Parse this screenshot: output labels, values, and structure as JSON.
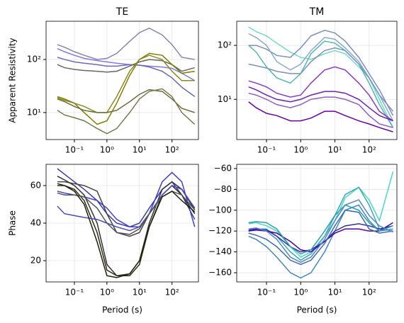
{
  "chart_data": [
    {
      "type": "line",
      "title": "TE",
      "ylabel": "Apparent Resistivity",
      "xscale": "log",
      "yscale": "log",
      "grid": true,
      "x": [
        0.03,
        0.05,
        0.1,
        0.2,
        0.5,
        1,
        2,
        5,
        10,
        20,
        50,
        100,
        200,
        500
      ],
      "xlim": [
        0.0135,
        650
      ],
      "ylim": [
        3.1,
        525
      ],
      "xticks": [
        {
          "value": 0.1,
          "label": "10⁻¹"
        },
        {
          "value": 1,
          "label": "10⁰"
        },
        {
          "value": 10,
          "label": "10¹"
        },
        {
          "value": 100,
          "label": "10²"
        }
      ],
      "yticks": [
        {
          "value": 10,
          "label": "10¹"
        },
        {
          "value": 100,
          "label": "10²"
        }
      ],
      "series": [
        {
          "color": "#8585b0",
          "values": [
            190,
            170,
            140,
            120,
            100,
            105,
            130,
            220,
            320,
            390,
            290,
            190,
            110,
            100
          ]
        },
        {
          "color": "#7b7be0",
          "values": [
            160,
            140,
            120,
            105,
            95,
            90,
            85,
            80,
            78,
            75,
            72,
            68,
            55,
            40
          ]
        },
        {
          "color": "#6a6ab8",
          "values": [
            110,
            100,
            90,
            85,
            80,
            75,
            75,
            80,
            78,
            72,
            60,
            45,
            30,
            20
          ]
        },
        {
          "color": "#666666",
          "values": [
            80,
            70,
            65,
            62,
            60,
            58,
            60,
            75,
            90,
            100,
            95,
            80,
            60,
            70
          ]
        },
        {
          "color": "#808000",
          "values": [
            20,
            18,
            15,
            10,
            6,
            7,
            15,
            50,
            100,
            130,
            120,
            80,
            55,
            60
          ]
        },
        {
          "color": "#8a8a20",
          "values": [
            19,
            17,
            15,
            13,
            10,
            10,
            20,
            60,
            100,
            120,
            100,
            60,
            40,
            40
          ]
        },
        {
          "color": "#6e6e3c",
          "values": [
            18,
            16,
            13,
            11,
            10,
            10,
            11,
            16,
            22,
            27,
            25,
            18,
            12,
            10
          ]
        },
        {
          "color": "#7a7a50",
          "values": [
            11,
            9,
            8,
            7,
            5,
            4,
            5,
            10,
            18,
            25,
            28,
            20,
            10,
            6
          ]
        }
      ]
    },
    {
      "type": "line",
      "title": "TM",
      "xscale": "log",
      "yscale": "log",
      "grid": true,
      "x": [
        0.03,
        0.05,
        0.1,
        0.2,
        0.5,
        1,
        2,
        5,
        10,
        20,
        50,
        100,
        200,
        500
      ],
      "xlim": [
        0.0135,
        650
      ],
      "ylim": [
        1.8,
        280
      ],
      "xticks": [
        {
          "value": 0.1,
          "label": "10⁻¹"
        },
        {
          "value": 1,
          "label": "10⁰"
        },
        {
          "value": 10,
          "label": "10¹"
        },
        {
          "value": 100,
          "label": "10²"
        }
      ],
      "yticks": [
        {
          "value": 10,
          "label": "10¹"
        },
        {
          "value": 100,
          "label": "10²"
        }
      ],
      "series": [
        {
          "color": "#70dcc4",
          "values": [
            220,
            180,
            150,
            110,
            75,
            60,
            55,
            70,
            80,
            70,
            40,
            25,
            10,
            3
          ]
        },
        {
          "color": "#7a8ec0",
          "values": [
            100,
            100,
            85,
            65,
            60,
            90,
            150,
            190,
            170,
            120,
            60,
            30,
            15,
            5
          ]
        },
        {
          "color": "#8aaacc",
          "values": [
            165,
            140,
            100,
            50,
            35,
            45,
            80,
            140,
            130,
            90,
            50,
            25,
            12,
            4
          ]
        },
        {
          "color": "#50b8b0",
          "values": [
            100,
            75,
            40,
            25,
            20,
            30,
            70,
            120,
            110,
            80,
            45,
            20,
            8,
            3
          ]
        },
        {
          "color": "#7c90c0",
          "values": [
            45,
            42,
            38,
            33,
            30,
            30,
            50,
            80,
            90,
            80,
            45,
            25,
            12,
            6
          ]
        },
        {
          "color": "#8a3cc8",
          "values": [
            22,
            20,
            17,
            13,
            11,
            12,
            20,
            35,
            40,
            35,
            20,
            12,
            6,
            4
          ]
        },
        {
          "color": "#7020b8",
          "values": [
            17,
            15,
            12,
            10,
            9,
            10,
            12,
            14,
            14,
            13,
            10,
            7,
            5,
            4
          ]
        },
        {
          "color": "#9060c8",
          "values": [
            13,
            12,
            10,
            8,
            7,
            8,
            10,
            11,
            11,
            10,
            8,
            5,
            3.5,
            3
          ]
        },
        {
          "color": "#6a00b0",
          "values": [
            9,
            7,
            5.5,
            5,
            4,
            4,
            4.5,
            6,
            6,
            5,
            4,
            3.5,
            3,
            2.5
          ]
        }
      ]
    },
    {
      "type": "line",
      "xlabel": "Period (s)",
      "ylabel": "Phase",
      "xscale": "log",
      "yscale": "linear",
      "grid": true,
      "x": [
        0.03,
        0.05,
        0.1,
        0.2,
        0.5,
        1,
        2,
        5,
        10,
        20,
        50,
        100,
        200,
        500
      ],
      "xlim": [
        0.0135,
        650
      ],
      "ylim": [
        8.7,
        71.3
      ],
      "xticks": [
        {
          "value": 0.1,
          "label": "10⁻¹"
        },
        {
          "value": 1,
          "label": "10⁰"
        },
        {
          "value": 10,
          "label": "10¹"
        },
        {
          "value": 100,
          "label": "10²"
        }
      ],
      "yticks": [
        20,
        40,
        60
      ],
      "series": [
        {
          "color": "#3b3bb0",
          "values": [
            69,
            66,
            62,
            58,
            52,
            45,
            40,
            38,
            40,
            48,
            58,
            62,
            55,
            42
          ]
        },
        {
          "color": "#4040d0",
          "values": [
            57,
            56,
            55,
            54,
            52,
            48,
            42,
            38,
            38,
            45,
            62,
            67,
            62,
            38
          ]
        },
        {
          "color": "#444444",
          "values": [
            62,
            62,
            61,
            60,
            57,
            45,
            35,
            33,
            35,
            45,
            55,
            60,
            58,
            48
          ]
        },
        {
          "color": "#2e2e18",
          "values": [
            60,
            60,
            58,
            52,
            35,
            15,
            12,
            12,
            18,
            38,
            55,
            60,
            55,
            45
          ]
        },
        {
          "color": "#333333",
          "values": [
            65,
            63,
            60,
            55,
            40,
            18,
            12,
            13,
            20,
            40,
            58,
            62,
            58,
            47
          ]
        },
        {
          "color": "#4a4ac0",
          "values": [
            49,
            45,
            44,
            43,
            42,
            40,
            38,
            36,
            38,
            45,
            55,
            60,
            58,
            48
          ]
        },
        {
          "color": "#555555",
          "values": [
            56,
            55,
            55,
            54,
            48,
            40,
            35,
            34,
            37,
            45,
            54,
            57,
            55,
            47
          ]
        },
        {
          "color": "#22220a",
          "values": [
            61,
            60,
            57,
            50,
            30,
            12,
            11,
            13,
            20,
            38,
            54,
            57,
            52,
            46
          ]
        }
      ]
    },
    {
      "type": "line",
      "xlabel": "Period (s)",
      "xscale": "log",
      "yscale": "linear",
      "grid": true,
      "x": [
        0.03,
        0.05,
        0.1,
        0.2,
        0.5,
        1,
        2,
        5,
        10,
        20,
        50,
        100,
        200,
        500
      ],
      "xlim": [
        0.0135,
        650
      ],
      "ylim": [
        -168.8,
        -56
      ],
      "xticks": [
        {
          "value": 0.1,
          "label": "10⁻¹"
        },
        {
          "value": 1,
          "label": "10⁰"
        },
        {
          "value": 10,
          "label": "10¹"
        },
        {
          "value": 100,
          "label": "10²"
        }
      ],
      "yticks": [
        {
          "value": -160,
          "label": "−160"
        },
        {
          "value": -140,
          "label": "−140"
        },
        {
          "value": -120,
          "label": "−120"
        },
        {
          "value": -100,
          "label": "−100"
        },
        {
          "value": -80,
          "label": "−80"
        },
        {
          "value": -60,
          "label": "−60"
        }
      ],
      "series": [
        {
          "color": "#48d8c8",
          "values": [
            -113,
            -112,
            -115,
            -120,
            -135,
            -145,
            -140,
            -125,
            -110,
            -88,
            -78,
            -90,
            -110,
            -63
          ]
        },
        {
          "color": "#3aa8b8",
          "values": [
            -120,
            -118,
            -118,
            -125,
            -140,
            -148,
            -142,
            -125,
            -105,
            -85,
            -78,
            -95,
            -118,
            -120
          ]
        },
        {
          "color": "#4088c0",
          "values": [
            -125,
            -128,
            -135,
            -145,
            -160,
            -165,
            -160,
            -140,
            -120,
            -100,
            -95,
            -110,
            -120,
            -118
          ]
        },
        {
          "color": "#3030b0",
          "values": [
            -119,
            -118,
            -119,
            -125,
            -135,
            -140,
            -138,
            -130,
            -120,
            -115,
            -113,
            -115,
            -118,
            -115
          ]
        },
        {
          "color": "#5000a0",
          "values": [
            -120,
            -119,
            -120,
            -122,
            -130,
            -138,
            -140,
            -130,
            -122,
            -118,
            -118,
            -120,
            -120,
            -112
          ]
        },
        {
          "color": "#3c6ab8",
          "values": [
            -122,
            -124,
            -128,
            -135,
            -148,
            -152,
            -148,
            -132,
            -115,
            -100,
            -102,
            -118,
            -122,
            -120
          ]
        },
        {
          "color": "#5588c8",
          "values": [
            -118,
            -117,
            -120,
            -128,
            -145,
            -150,
            -145,
            -128,
            -110,
            -95,
            -90,
            -105,
            -115,
            -121
          ]
        },
        {
          "color": "#2aa0a8",
          "values": [
            -112,
            -111,
            -112,
            -118,
            -135,
            -142,
            -138,
            -120,
            -105,
            -95,
            -100,
            -112,
            -120,
            -115
          ]
        }
      ]
    }
  ]
}
